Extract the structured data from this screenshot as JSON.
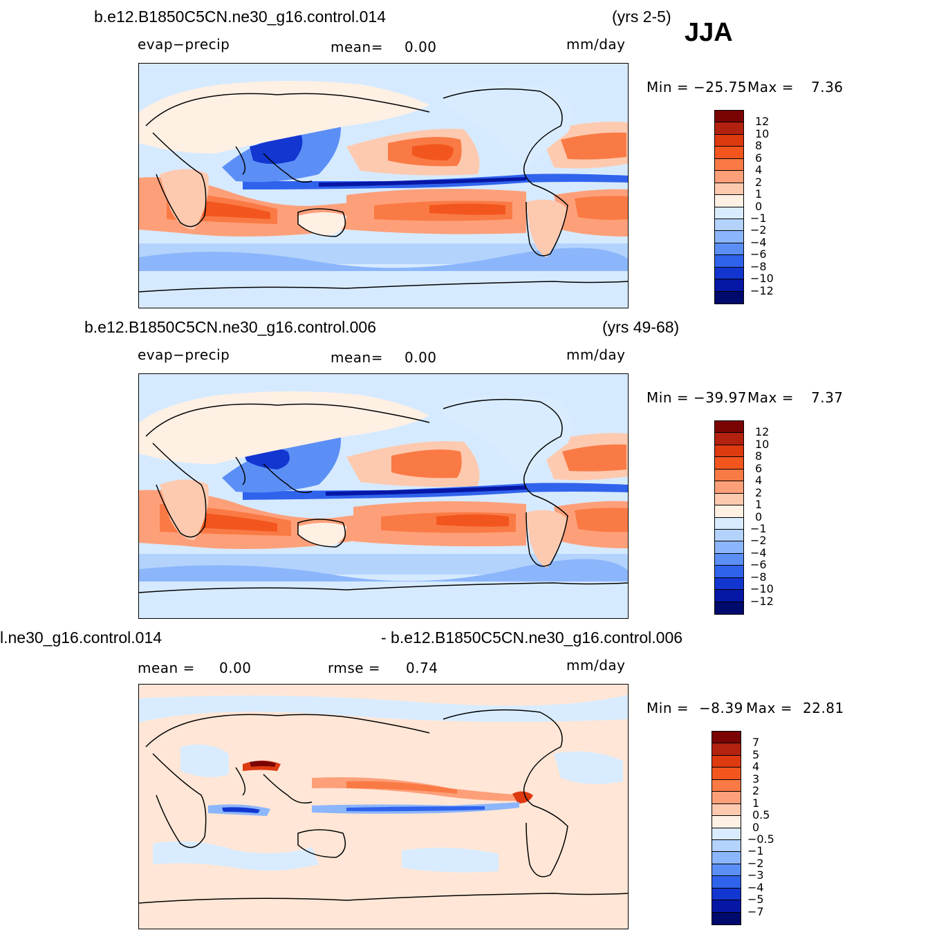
{
  "season": "JJA",
  "panels": [
    {
      "title_left": "b.e12.B1850C5CN.ne30_g16.control.014",
      "title_right": "(yrs 2-5)",
      "field_label": "evap−precip",
      "stat1_label": "mean=",
      "stat1_value": "0.00",
      "units": "mm/day",
      "min_label": "Min  =",
      "min_value": "−25.75",
      "max_label": "Max  =",
      "max_value": "7.36",
      "levels": [
        "12",
        "10",
        "8",
        "6",
        "4",
        "2",
        "1",
        "0",
        "−1",
        "−2",
        "−4",
        "−6",
        "−8",
        "−10",
        "−12"
      ]
    },
    {
      "title_left": "b.e12.B1850C5CN.ne30_g16.control.006",
      "title_right": "(yrs 49-68)",
      "field_label": "evap−precip",
      "stat1_label": "mean=",
      "stat1_value": "0.00",
      "units": "mm/day",
      "min_label": "Min  =",
      "min_value": "−39.97",
      "max_label": "Max  =",
      "max_value": "7.37",
      "levels": [
        "12",
        "10",
        "8",
        "6",
        "4",
        "2",
        "1",
        "0",
        "−1",
        "−2",
        "−4",
        "−6",
        "−8",
        "−10",
        "−12"
      ]
    },
    {
      "title_left": "l.ne30_g16.control.014",
      "title_right": "- b.e12.B1850C5CN.ne30_g16.control.006",
      "stat1_label": "mean  =",
      "stat1_value": "0.00",
      "stat2_label": "rmse  =",
      "stat2_value": "0.74",
      "units": "mm/day",
      "min_label": "Min  =",
      "min_value": "−8.39",
      "max_label": "Max  =",
      "max_value": "22.81",
      "levels": [
        "7",
        "5",
        "4",
        "3",
        "2",
        "1",
        "0.5",
        "0",
        "−0.5",
        "−1",
        "−2",
        "−3",
        "−4",
        "−5",
        "−7"
      ]
    }
  ],
  "colorbar_colors": [
    "#7a0403",
    "#b3210f",
    "#de3a10",
    "#f2561e",
    "#fa7a45",
    "#fda07a",
    "#fdcab0",
    "#fff0e4",
    "#d9ecff",
    "#b3d3fd",
    "#8cb6fb",
    "#5c8ff6",
    "#3063ec",
    "#1236cf",
    "#0616a5",
    "#000a6d"
  ],
  "map_colors": {
    "ocean_base": "#d6eaff",
    "diff_base": "#ffe6d6"
  }
}
